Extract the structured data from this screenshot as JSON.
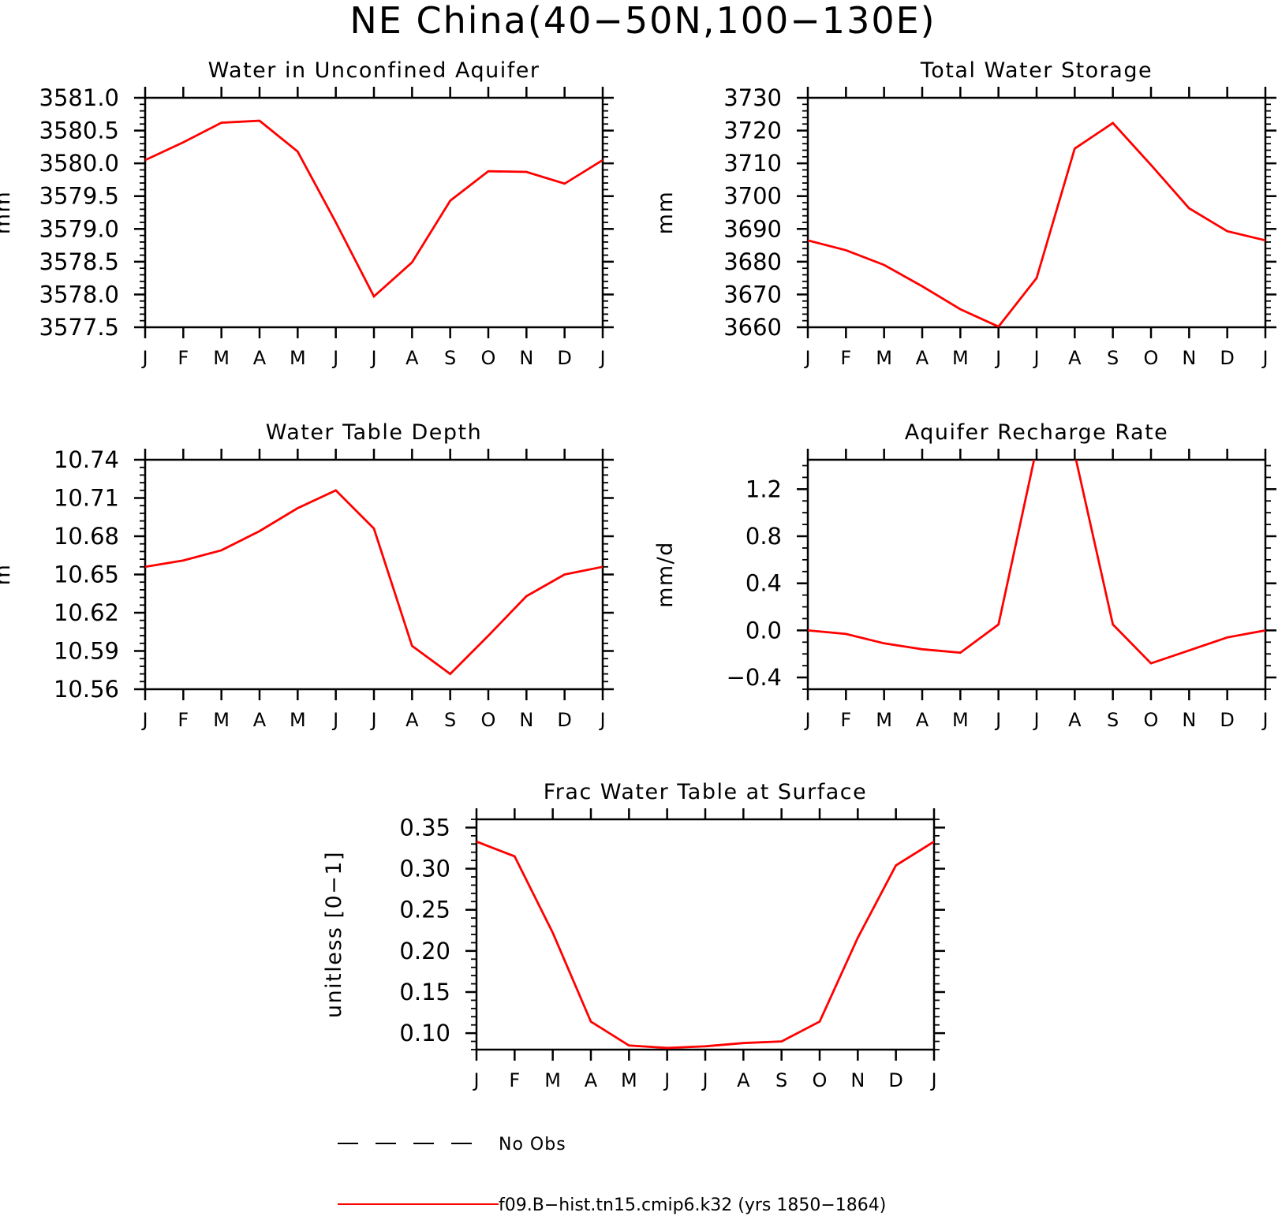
{
  "figure": {
    "title": "NE China(40−50N,100−130E)",
    "x_ticks": [
      "J",
      "F",
      "M",
      "A",
      "M",
      "J",
      "J",
      "A",
      "S",
      "O",
      "N",
      "D",
      "J"
    ],
    "series_color": "#ff0000",
    "obs_color": "#000000"
  },
  "legend": {
    "obs_label": "No Obs",
    "model_label": "f09.B−hist.tn15.cmip6.k32 (yrs 1850−1864)"
  },
  "chart_data": [
    {
      "type": "line",
      "title": "Water in Unconfined Aquifer",
      "ylabel": "mm",
      "ylim": [
        3577.5,
        3581.0
      ],
      "yticks": [
        "3577.5",
        "3578.0",
        "3578.5",
        "3579.0",
        "3579.5",
        "3580.0",
        "3580.5",
        "3581.0"
      ],
      "y_minor_step": 0.1,
      "x": [
        "J",
        "F",
        "M",
        "A",
        "M",
        "J",
        "J",
        "A",
        "S",
        "O",
        "N",
        "D",
        "J"
      ],
      "series": [
        {
          "values": [
            3580.05,
            3580.32,
            3580.62,
            3580.65,
            3580.18,
            3579.1,
            3577.97,
            3578.49,
            3579.43,
            3579.88,
            3579.87,
            3579.69,
            3580.05
          ]
        }
      ]
    },
    {
      "type": "line",
      "title": "Total Water Storage",
      "ylabel": "mm",
      "ylim": [
        3660,
        3730
      ],
      "yticks": [
        "3660",
        "3670",
        "3680",
        "3690",
        "3700",
        "3710",
        "3720",
        "3730"
      ],
      "y_minor_step": 2,
      "x": [
        "J",
        "F",
        "M",
        "A",
        "M",
        "J",
        "J",
        "A",
        "S",
        "O",
        "N",
        "D",
        "J"
      ],
      "series": [
        {
          "values": [
            3686.5,
            3683.5,
            3679,
            3672.5,
            3665.5,
            3660.2,
            3675,
            3714.5,
            3722.3,
            3709.5,
            3696.3,
            3689.3,
            3686.5
          ]
        }
      ]
    },
    {
      "type": "line",
      "title": "Water Table Depth",
      "ylabel": "m",
      "ylim": [
        10.56,
        10.74
      ],
      "yticks": [
        "10.56",
        "10.59",
        "10.62",
        "10.65",
        "10.68",
        "10.71",
        "10.74"
      ],
      "y_minor_step": 0.006,
      "x": [
        "J",
        "F",
        "M",
        "A",
        "M",
        "J",
        "J",
        "A",
        "S",
        "O",
        "N",
        "D",
        "J"
      ],
      "series": [
        {
          "values": [
            10.656,
            10.661,
            10.669,
            10.684,
            10.702,
            10.716,
            10.686,
            10.594,
            10.572,
            10.602,
            10.633,
            10.65,
            10.656
          ]
        }
      ]
    },
    {
      "type": "line",
      "title": "Aquifer Recharge Rate",
      "ylabel": "mm/d",
      "ylim": [
        -0.5,
        1.45
      ],
      "yticks": [
        "−0.4",
        "0.0",
        "0.4",
        "0.8",
        "1.2"
      ],
      "ytick_values": [
        -0.4,
        0.0,
        0.4,
        0.8,
        1.2
      ],
      "y_minor_step": 0.1,
      "x": [
        "J",
        "F",
        "M",
        "A",
        "M",
        "J",
        "J",
        "A",
        "S",
        "O",
        "N",
        "D",
        "J"
      ],
      "series": [
        {
          "values": [
            0.0,
            -0.03,
            -0.11,
            -0.16,
            -0.19,
            0.05,
            1.55,
            1.5,
            0.05,
            -0.28,
            -0.17,
            -0.06,
            0.0
          ]
        }
      ]
    },
    {
      "type": "line",
      "title": "Frac Water Table at Surface",
      "ylabel": "unitless [0−1]",
      "ylim": [
        0.08,
        0.36
      ],
      "yticks": [
        "0.10",
        "0.15",
        "0.20",
        "0.25",
        "0.30",
        "0.35"
      ],
      "y_minor_step": 0.01,
      "x": [
        "J",
        "F",
        "M",
        "A",
        "M",
        "J",
        "J",
        "A",
        "S",
        "O",
        "N",
        "D",
        "J"
      ],
      "series": [
        {
          "values": [
            0.333,
            0.315,
            0.222,
            0.114,
            0.085,
            0.082,
            0.084,
            0.088,
            0.09,
            0.114,
            0.216,
            0.304,
            0.333
          ]
        }
      ]
    }
  ]
}
